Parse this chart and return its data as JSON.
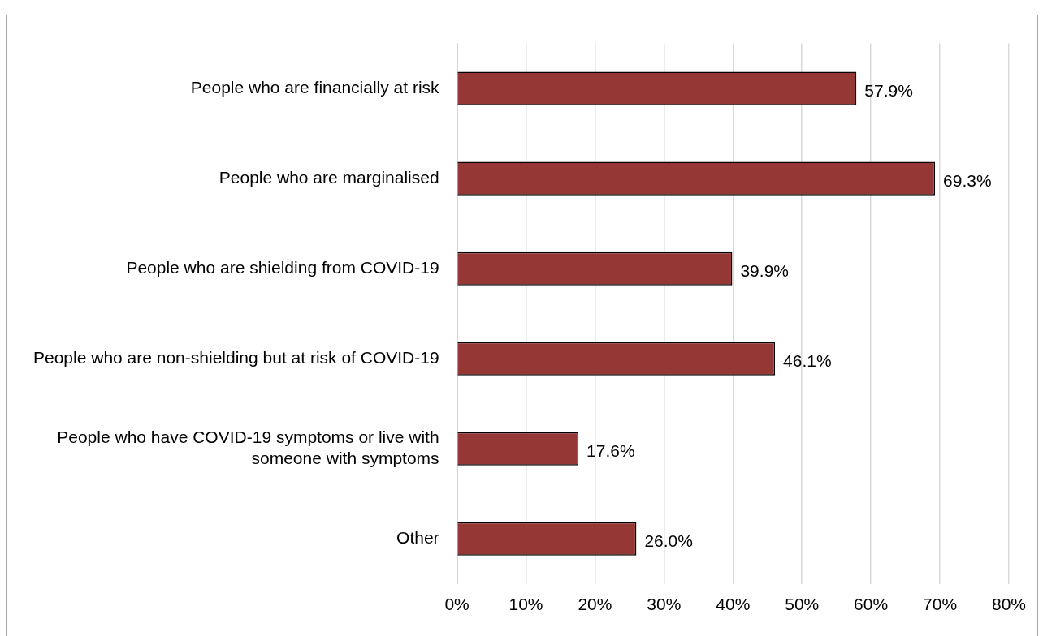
{
  "chart_data": {
    "type": "bar",
    "orientation": "horizontal",
    "categories": [
      "People who are financially at risk",
      "People who are marginalised",
      "People who are shielding from COVID-19",
      "People who are non-shielding but at risk of COVID-19",
      "People who have COVID-19 symptoms or live with someone with symptoms",
      "Other"
    ],
    "values": [
      57.9,
      69.3,
      39.9,
      46.1,
      17.6,
      26.0
    ],
    "value_labels": [
      "57.9%",
      "69.3%",
      "39.9%",
      "46.1%",
      "17.6%",
      "26.0%"
    ],
    "color": "#953735",
    "xlim": [
      0,
      80
    ],
    "xticks": [
      {
        "value": 0,
        "label": "0%"
      },
      {
        "value": 10,
        "label": "10%"
      },
      {
        "value": 20,
        "label": "20%"
      },
      {
        "value": 30,
        "label": "30%"
      },
      {
        "value": 40,
        "label": "40%"
      },
      {
        "value": 50,
        "label": "50%"
      },
      {
        "value": 60,
        "label": "60%"
      },
      {
        "value": 70,
        "label": "70%"
      },
      {
        "value": 80,
        "label": "80%"
      }
    ],
    "grid": "x"
  }
}
